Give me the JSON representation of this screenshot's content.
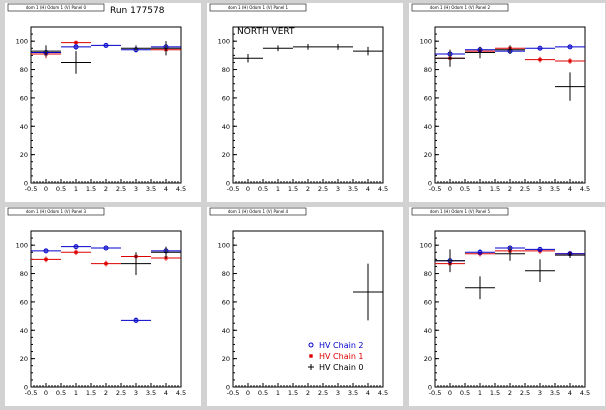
{
  "run_label": "Run 177578",
  "legend": [
    {
      "label": "HV Chain 2",
      "color": "#0000cc",
      "marker": "circle"
    },
    {
      "label": "HV Chain 1",
      "color": "#dd0000",
      "marker": "star"
    },
    {
      "label": "HV Chain 0",
      "color": "#000000",
      "marker": "plus"
    }
  ],
  "chart_data": [
    {
      "type": "scatter",
      "title": "dom 1 (H) Odom 1 (V) Panel 0",
      "annotation": "",
      "xticks": [
        "-0.5",
        "0",
        "0.5",
        "1",
        "1.5",
        "2",
        "2.5",
        "3",
        "3.5",
        "4",
        "4.5"
      ],
      "yticks": [
        "0",
        "20",
        "40",
        "60",
        "80",
        "100"
      ],
      "xlim": [
        -0.5,
        4.5
      ],
      "ylim": [
        0,
        110
      ],
      "series": [
        {
          "name": "HV Chain 1",
          "color": "#dd0000",
          "points": [
            {
              "x": 0,
              "y": 91,
              "xerr": 0.5,
              "yerr": 3
            },
            {
              "x": 1,
              "y": 99,
              "xerr": 0.5,
              "yerr": 1
            },
            {
              "x": 4,
              "y": 94,
              "xerr": 0.5,
              "yerr": 2
            }
          ]
        },
        {
          "name": "HV Chain 2",
          "color": "#0000cc",
          "points": [
            {
              "x": 0,
              "y": 92,
              "xerr": 0.5,
              "yerr": 2
            },
            {
              "x": 1,
              "y": 96,
              "xerr": 0.5,
              "yerr": 2
            },
            {
              "x": 2,
              "y": 97,
              "xerr": 0.5,
              "yerr": 1
            },
            {
              "x": 3,
              "y": 94,
              "xerr": 0.5,
              "yerr": 2
            },
            {
              "x": 4,
              "y": 96,
              "xerr": 0.5,
              "yerr": 2
            }
          ]
        },
        {
          "name": "HV Chain 0",
          "color": "#000000",
          "points": [
            {
              "x": 0,
              "y": 93,
              "xerr": 0.5,
              "yerr": 4
            },
            {
              "x": 1,
              "y": 85,
              "xerr": 0.5,
              "yerr": 8
            },
            {
              "x": 3,
              "y": 95,
              "xerr": 0.5,
              "yerr": 2
            },
            {
              "x": 4,
              "y": 95,
              "xerr": 0.5,
              "yerr": 5
            }
          ]
        }
      ]
    },
    {
      "type": "scatter",
      "title": "dom 1 (H) Odom 1 (V) Panel 1",
      "annotation": "NORTH VERT",
      "xticks": [
        "-0.5",
        "0",
        "0.5",
        "1",
        "1.5",
        "2",
        "2.5",
        "3",
        "3.5",
        "4",
        "4.5"
      ],
      "yticks": [
        "0",
        "20",
        "40",
        "60",
        "80",
        "100"
      ],
      "xlim": [
        -0.5,
        4.5
      ],
      "ylim": [
        0,
        110
      ],
      "series": [
        {
          "name": "HV Chain 0",
          "color": "#000000",
          "points": [
            {
              "x": 0,
              "y": 88,
              "xerr": 0.5,
              "yerr": 3
            },
            {
              "x": 1,
              "y": 95,
              "xerr": 0.5,
              "yerr": 2
            },
            {
              "x": 2,
              "y": 96,
              "xerr": 0.5,
              "yerr": 2
            },
            {
              "x": 3,
              "y": 96,
              "xerr": 0.5,
              "yerr": 2
            },
            {
              "x": 4,
              "y": 93,
              "xerr": 0.5,
              "yerr": 3
            }
          ]
        }
      ]
    },
    {
      "type": "scatter",
      "title": "dom 1 (H) Odom 1 (V) Panel 2",
      "annotation": "",
      "xticks": [
        "-0.5",
        "0",
        "0.5",
        "1",
        "1.5",
        "2",
        "2.5",
        "3",
        "3.5",
        "4",
        "4.5"
      ],
      "yticks": [
        "0",
        "20",
        "40",
        "60",
        "80",
        "100"
      ],
      "xlim": [
        -0.5,
        4.5
      ],
      "ylim": [
        0,
        110
      ],
      "series": [
        {
          "name": "HV Chain 1",
          "color": "#dd0000",
          "points": [
            {
              "x": 0,
              "y": 88,
              "xerr": 0.5,
              "yerr": 2
            },
            {
              "x": 1,
              "y": 93,
              "xerr": 0.5,
              "yerr": 2
            },
            {
              "x": 2,
              "y": 95,
              "xerr": 0.5,
              "yerr": 2
            },
            {
              "x": 3,
              "y": 87,
              "xerr": 0.5,
              "yerr": 2
            },
            {
              "x": 4,
              "y": 86,
              "xerr": 0.5,
              "yerr": 2
            }
          ]
        },
        {
          "name": "HV Chain 2",
          "color": "#0000cc",
          "points": [
            {
              "x": 0,
              "y": 91,
              "xerr": 0.5,
              "yerr": 2
            },
            {
              "x": 1,
              "y": 94,
              "xerr": 0.5,
              "yerr": 2
            },
            {
              "x": 2,
              "y": 93,
              "xerr": 0.5,
              "yerr": 2
            },
            {
              "x": 3,
              "y": 95,
              "xerr": 0.5,
              "yerr": 1
            },
            {
              "x": 4,
              "y": 96,
              "xerr": 0.5,
              "yerr": 1
            }
          ]
        },
        {
          "name": "HV Chain 0",
          "color": "#000000",
          "points": [
            {
              "x": 0,
              "y": 88,
              "xerr": 0.5,
              "yerr": 6
            },
            {
              "x": 1,
              "y": 92,
              "xerr": 0.5,
              "yerr": 4
            },
            {
              "x": 2,
              "y": 94,
              "xerr": 0.5,
              "yerr": 3
            },
            {
              "x": 4,
              "y": 68,
              "xerr": 0.5,
              "yerr": 10
            }
          ]
        }
      ]
    },
    {
      "type": "scatter",
      "title": "dom 1 (H) Odom 1 (V) Panel 3",
      "annotation": "",
      "xticks": [
        "-0.5",
        "0",
        "0.5",
        "1",
        "1.5",
        "2",
        "2.5",
        "3",
        "3.5",
        "4",
        "4.5"
      ],
      "yticks": [
        "0",
        "20",
        "40",
        "60",
        "80",
        "100"
      ],
      "xlim": [
        -0.5,
        4.5
      ],
      "ylim": [
        0,
        110
      ],
      "series": [
        {
          "name": "HV Chain 1",
          "color": "#dd0000",
          "points": [
            {
              "x": 0,
              "y": 90,
              "xerr": 0.5,
              "yerr": 2
            },
            {
              "x": 1,
              "y": 95,
              "xerr": 0.5,
              "yerr": 2
            },
            {
              "x": 2,
              "y": 87,
              "xerr": 0.5,
              "yerr": 2
            },
            {
              "x": 3,
              "y": 92,
              "xerr": 0.5,
              "yerr": 2
            },
            {
              "x": 4,
              "y": 91,
              "xerr": 0.5,
              "yerr": 2
            }
          ]
        },
        {
          "name": "HV Chain 2",
          "color": "#0000cc",
          "points": [
            {
              "x": 0,
              "y": 96,
              "xerr": 0.5,
              "yerr": 1
            },
            {
              "x": 1,
              "y": 99,
              "xerr": 0.5,
              "yerr": 1
            },
            {
              "x": 2,
              "y": 98,
              "xerr": 0.5,
              "yerr": 1
            },
            {
              "x": 3,
              "y": 47,
              "xerr": 0.5,
              "yerr": 2
            },
            {
              "x": 4,
              "y": 96,
              "xerr": 0.5,
              "yerr": 2
            }
          ]
        },
        {
          "name": "HV Chain 0",
          "color": "#000000",
          "points": [
            {
              "x": 3,
              "y": 87,
              "xerr": 0.5,
              "yerr": 8
            },
            {
              "x": 4,
              "y": 95,
              "xerr": 0.5,
              "yerr": 4
            }
          ]
        }
      ]
    },
    {
      "type": "scatter",
      "title": "dom 1 (H) Odom 1 (V) Panel 4",
      "annotation": "",
      "xticks": [
        "-0.5",
        "0",
        "0.5",
        "1",
        "1.5",
        "2",
        "2.5",
        "3",
        "3.5",
        "4",
        "4.5"
      ],
      "yticks": [
        "0",
        "20",
        "40",
        "60",
        "80",
        "100"
      ],
      "xlim": [
        -0.5,
        4.5
      ],
      "ylim": [
        0,
        110
      ],
      "show_legend": true,
      "series": [
        {
          "name": "HV Chain 0",
          "color": "#000000",
          "points": [
            {
              "x": 4,
              "y": 67,
              "xerr": 0.5,
              "yerr": 20
            }
          ]
        }
      ]
    },
    {
      "type": "scatter",
      "title": "dom 1 (H) Odom 1 (V) Panel 5",
      "annotation": "",
      "xticks": [
        "-0.5",
        "0",
        "0.5",
        "1",
        "1.5",
        "2",
        "2.5",
        "3",
        "3.5",
        "4",
        "4.5"
      ],
      "yticks": [
        "0",
        "20",
        "40",
        "60",
        "80",
        "100"
      ],
      "xlim": [
        -0.5,
        4.5
      ],
      "ylim": [
        0,
        110
      ],
      "series": [
        {
          "name": "HV Chain 1",
          "color": "#dd0000",
          "points": [
            {
              "x": 0,
              "y": 87,
              "xerr": 0.5,
              "yerr": 2
            },
            {
              "x": 1,
              "y": 94,
              "xerr": 0.5,
              "yerr": 2
            },
            {
              "x": 2,
              "y": 96,
              "xerr": 0.5,
              "yerr": 2
            },
            {
              "x": 3,
              "y": 96,
              "xerr": 0.5,
              "yerr": 2
            },
            {
              "x": 4,
              "y": 94,
              "xerr": 0.5,
              "yerr": 2
            }
          ]
        },
        {
          "name": "HV Chain 2",
          "color": "#0000cc",
          "points": [
            {
              "x": 0,
              "y": 89,
              "xerr": 0.5,
              "yerr": 2
            },
            {
              "x": 1,
              "y": 95,
              "xerr": 0.5,
              "yerr": 2
            },
            {
              "x": 2,
              "y": 98,
              "xerr": 0.5,
              "yerr": 1
            },
            {
              "x": 3,
              "y": 97,
              "xerr": 0.5,
              "yerr": 1
            },
            {
              "x": 4,
              "y": 94,
              "xerr": 0.5,
              "yerr": 1
            }
          ]
        },
        {
          "name": "HV Chain 0",
          "color": "#000000",
          "points": [
            {
              "x": 0,
              "y": 89,
              "xerr": 0.5,
              "yerr": 8
            },
            {
              "x": 1,
              "y": 70,
              "xerr": 0.5,
              "yerr": 8
            },
            {
              "x": 2,
              "y": 94,
              "xerr": 0.5,
              "yerr": 5
            },
            {
              "x": 3,
              "y": 82,
              "xerr": 0.5,
              "yerr": 8
            },
            {
              "x": 4,
              "y": 93,
              "xerr": 0.5,
              "yerr": 2
            }
          ]
        }
      ]
    }
  ]
}
